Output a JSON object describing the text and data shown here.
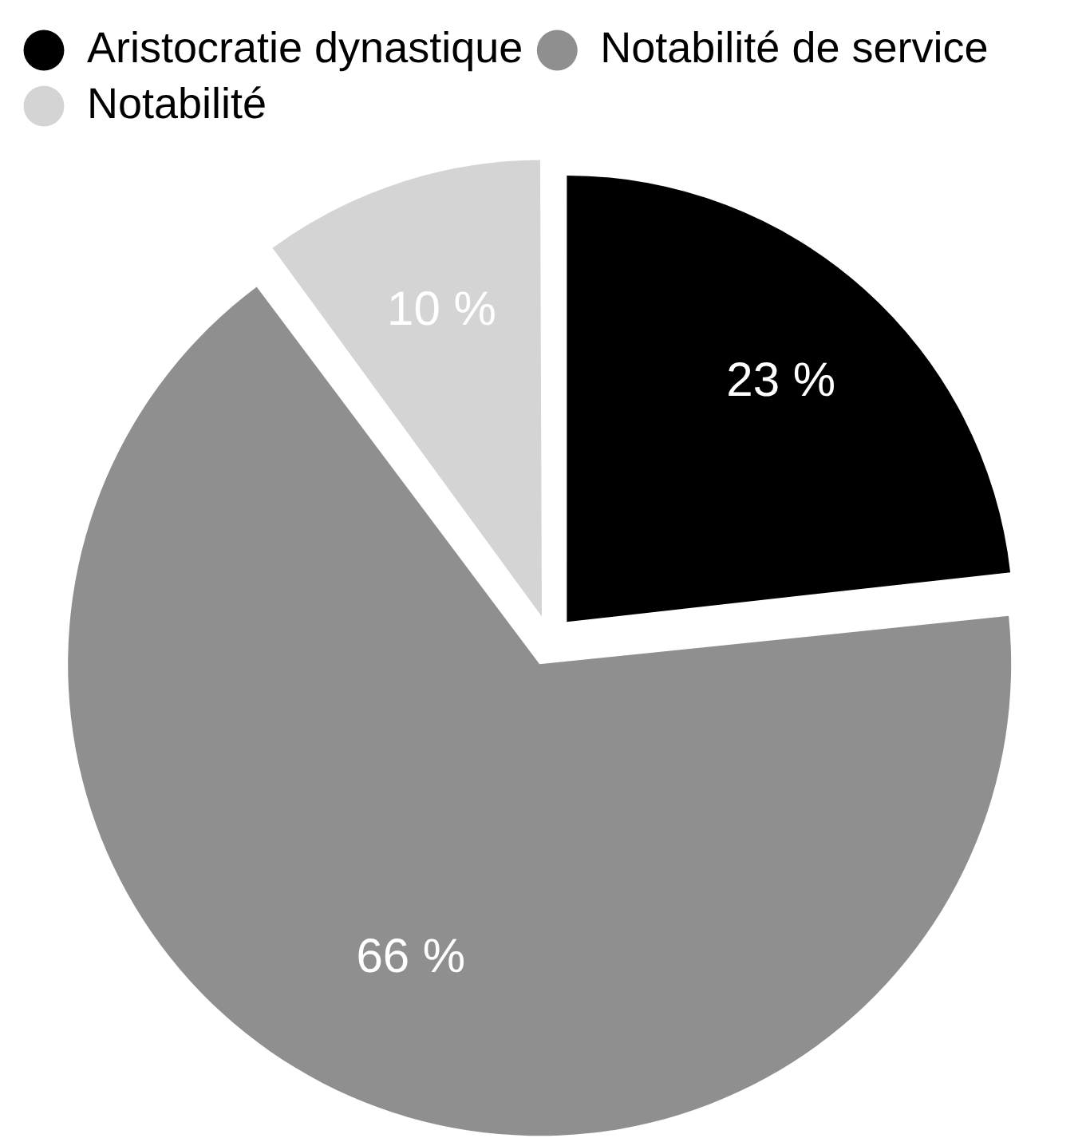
{
  "chart_data": {
    "type": "pie",
    "categories": [
      "Aristocratie dynastique",
      "Notabilité de service",
      "Notabilité"
    ],
    "values": [
      23,
      66,
      10
    ],
    "colors": [
      "#000000",
      "#8f8f8f",
      "#d4d4d4"
    ],
    "value_labels": [
      "23 %",
      "66 %",
      "10 %"
    ],
    "legend": "top left"
  }
}
